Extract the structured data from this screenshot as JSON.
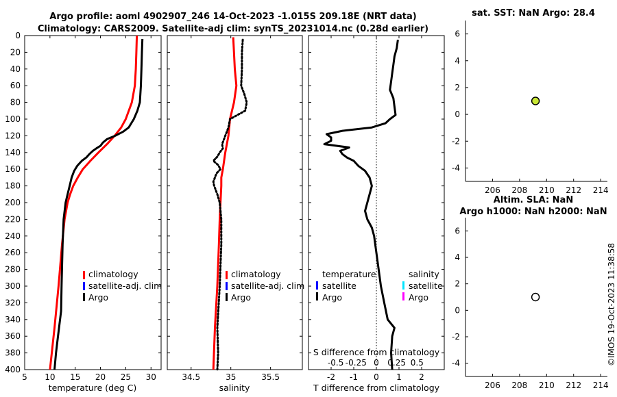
{
  "title": {
    "line1": "Argo profile: aoml 4902907_246 14-Oct-2023 -1.015S 209.18E (NRT data)",
    "line2": "Climatology: CARS2009. Satellite-adj clim: synTS_20231014.nc (0.28d earlier)"
  },
  "watermark": "©IMOS 19-Oct-2023 11:38:58",
  "colors": {
    "climatology": "#ff0000",
    "satellite": "#0000ff",
    "argo": "#000000",
    "sat_t": "#00e5ff",
    "sat_s": "#ff00ff",
    "sst_marker": "#c8e635"
  },
  "chart_data": [
    {
      "id": "temperature",
      "type": "line",
      "xlabel": "temperature (deg C)",
      "xlim": [
        5,
        32
      ],
      "xticks": [
        "5",
        "10",
        "15",
        "20",
        "25",
        "30"
      ],
      "ylim": [
        0,
        400
      ],
      "yticks": [
        "0",
        "20",
        "40",
        "60",
        "80",
        "100",
        "120",
        "140",
        "160",
        "180",
        "200",
        "220",
        "240",
        "260",
        "280",
        "300",
        "320",
        "340",
        "360",
        "380",
        "400"
      ],
      "legend": [
        "climatology",
        "satellite-adj. clim",
        "Argo"
      ],
      "series": [
        {
          "name": "climatology",
          "color": "#ff0000",
          "depth": [
            0,
            20,
            40,
            60,
            80,
            100,
            110,
            120,
            130,
            140,
            150,
            160,
            170,
            180,
            190,
            200,
            220,
            250,
            300,
            350,
            400
          ],
          "values": [
            27.2,
            27.1,
            27.0,
            26.8,
            26.2,
            25.0,
            24.1,
            22.8,
            21.3,
            19.6,
            18.0,
            16.5,
            15.5,
            14.6,
            14.0,
            13.5,
            12.9,
            12.4,
            11.7,
            10.9,
            10.0
          ]
        },
        {
          "name": "Argo",
          "color": "#000000",
          "depth": [
            4,
            20,
            40,
            60,
            80,
            90,
            100,
            110,
            115,
            120,
            124,
            128,
            132,
            135,
            138,
            142,
            146,
            150,
            156,
            162,
            170,
            180,
            190,
            200,
            220,
            250,
            300,
            330,
            360,
            380,
            400
          ],
          "values": [
            28.3,
            28.2,
            28.1,
            28.0,
            27.8,
            27.3,
            26.6,
            25.6,
            24.5,
            22.9,
            21.3,
            20.5,
            20.0,
            19.2,
            18.5,
            17.8,
            17.2,
            16.3,
            15.4,
            14.8,
            14.3,
            13.9,
            13.5,
            13.1,
            12.7,
            12.5,
            12.3,
            12.2,
            11.6,
            11.2,
            10.9
          ]
        }
      ]
    },
    {
      "id": "salinity",
      "type": "line",
      "xlabel": "salinity",
      "xlim": [
        34.2,
        35.9
      ],
      "xticks": [
        "34.5",
        "35",
        "35.5"
      ],
      "ylim": [
        0,
        400
      ],
      "legend": [
        "climatology",
        "satellite-adj. clim",
        "Argo"
      ],
      "series": [
        {
          "name": "climatology",
          "color": "#ff0000",
          "depth": [
            2,
            20,
            40,
            60,
            80,
            100,
            120,
            140,
            160,
            170,
            180,
            200,
            220,
            250,
            300,
            350,
            400
          ],
          "values": [
            35.03,
            35.04,
            35.05,
            35.07,
            35.04,
            34.99,
            34.97,
            34.93,
            34.9,
            34.88,
            34.88,
            34.87,
            34.86,
            34.85,
            34.83,
            34.8,
            34.78
          ]
        },
        {
          "name": "Argo",
          "color": "#000000",
          "depth": [
            5,
            20,
            40,
            60,
            70,
            80,
            90,
            100,
            110,
            120,
            130,
            135,
            140,
            145,
            150,
            155,
            160,
            165,
            170,
            175,
            180,
            190,
            200,
            220,
            250,
            300,
            350,
            380,
            400
          ],
          "values": [
            35.15,
            35.14,
            35.14,
            35.13,
            35.17,
            35.2,
            35.18,
            34.99,
            34.97,
            34.93,
            34.89,
            34.9,
            34.86,
            34.83,
            34.78,
            34.84,
            34.87,
            34.82,
            34.8,
            34.78,
            34.79,
            34.83,
            34.86,
            34.88,
            34.88,
            34.86,
            34.83,
            34.84,
            34.83
          ]
        }
      ]
    },
    {
      "id": "tdiff",
      "type": "line",
      "xlabel": "T difference from climatology",
      "xlim": [
        -3,
        3
      ],
      "xticks": [
        "-2",
        "-1",
        "0",
        "1",
        "2"
      ],
      "sxlabel": "S difference from climatology",
      "sxticks": [
        "-0.5",
        "-0.25",
        "0",
        "0.25",
        "0.5"
      ],
      "ylim": [
        0,
        400
      ],
      "legend": {
        "temperature": "temperature",
        "salinity": "salinity",
        "satellite": "satellite",
        "argo": "Argo"
      },
      "series": [
        {
          "name": "Argo T diff",
          "color": "#000000",
          "depth": [
            5,
            15,
            25,
            35,
            45,
            55,
            65,
            75,
            85,
            95,
            100,
            105,
            110,
            114,
            118,
            122,
            126,
            130,
            134,
            138,
            142,
            146,
            150,
            156,
            162,
            170,
            180,
            190,
            200,
            210,
            220,
            230,
            240,
            260,
            280,
            300,
            320,
            340,
            350,
            360,
            380,
            400
          ],
          "values": [
            0.95,
            0.9,
            0.8,
            0.75,
            0.7,
            0.65,
            0.6,
            0.75,
            0.8,
            0.85,
            0.6,
            0.4,
            -0.2,
            -1.5,
            -2.2,
            -2.0,
            -2.0,
            -2.3,
            -1.2,
            -1.6,
            -1.5,
            -1.3,
            -1.0,
            -0.8,
            -0.5,
            -0.3,
            -0.2,
            -0.3,
            -0.4,
            -0.5,
            -0.4,
            -0.2,
            -0.1,
            0.0,
            0.1,
            0.2,
            0.35,
            0.5,
            0.8,
            0.7,
            0.65,
            0.7
          ]
        }
      ]
    },
    {
      "id": "sst",
      "type": "scatter",
      "title": "sat. SST: NaN Argo: 28.4",
      "xlim": [
        204,
        214.5
      ],
      "xticks": [
        "206",
        "208",
        "210",
        "212",
        "214"
      ],
      "ylim": [
        -5,
        7
      ],
      "yticks": [
        "6",
        "4",
        "2",
        "0",
        "-2",
        "-4"
      ],
      "points": [
        {
          "x": 209.18,
          "y": 1.0
        }
      ]
    },
    {
      "id": "sla",
      "type": "scatter",
      "title1": "Altim. SLA: NaN",
      "title2": "Argo h1000: NaN h2000: NaN",
      "xlim": [
        204,
        214.5
      ],
      "xticks": [
        "206",
        "208",
        "210",
        "212",
        "214"
      ],
      "ylim": [
        -5,
        7
      ],
      "yticks": [
        "6",
        "4",
        "2",
        "0",
        "-2",
        "-4"
      ],
      "points": [
        {
          "x": 209.18,
          "y": 1.0
        }
      ]
    }
  ]
}
